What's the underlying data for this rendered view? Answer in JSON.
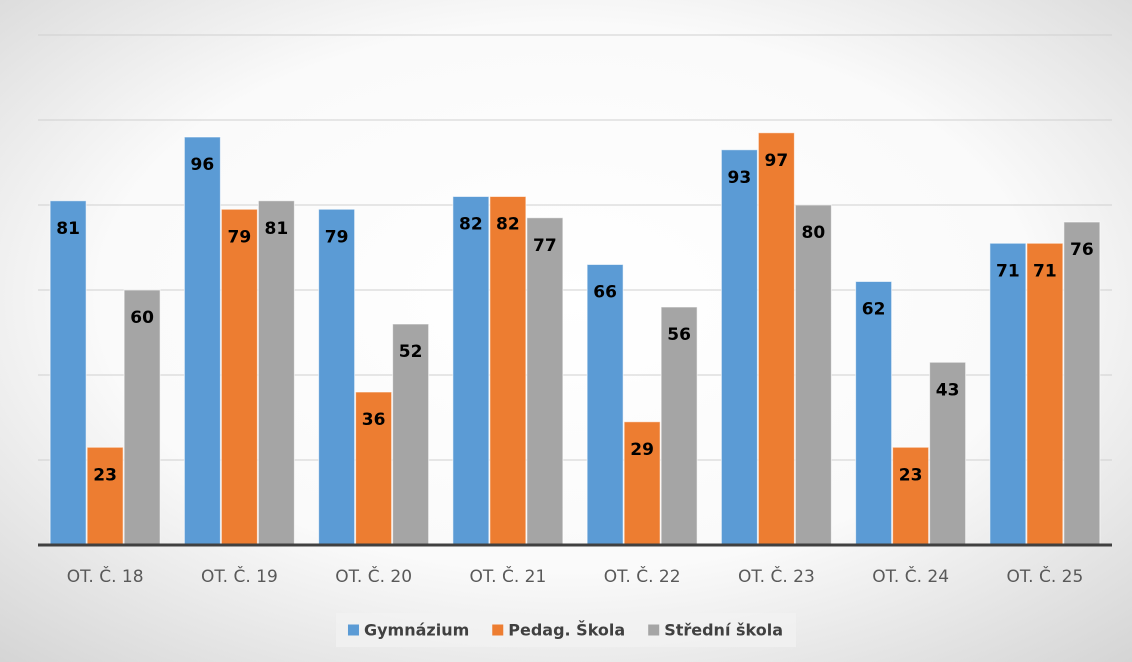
{
  "chart_data": {
    "type": "bar",
    "categories": [
      "OT. Č. 18",
      "OT. Č. 19",
      "OT. Č. 20",
      "OT. Č. 21",
      "OT. Č. 22",
      "OT. Č. 23",
      "OT. Č. 24",
      "OT. Č. 25"
    ],
    "series": [
      {
        "name": "Gymnázium",
        "color": "#5b9bd5",
        "values": [
          81,
          96,
          79,
          82,
          66,
          93,
          62,
          71
        ]
      },
      {
        "name": "Pedag. Škola",
        "color": "#ed7d31",
        "values": [
          23,
          79,
          36,
          82,
          29,
          97,
          23,
          71
        ]
      },
      {
        "name": "Střední škola",
        "color": "#a5a5a5",
        "values": [
          60,
          81,
          52,
          77,
          56,
          80,
          43,
          76
        ]
      }
    ],
    "ylim": [
      0,
      120
    ],
    "yticks": [
      0,
      20,
      40,
      60,
      80,
      100,
      120
    ],
    "grid": true,
    "legend": "bottom"
  }
}
